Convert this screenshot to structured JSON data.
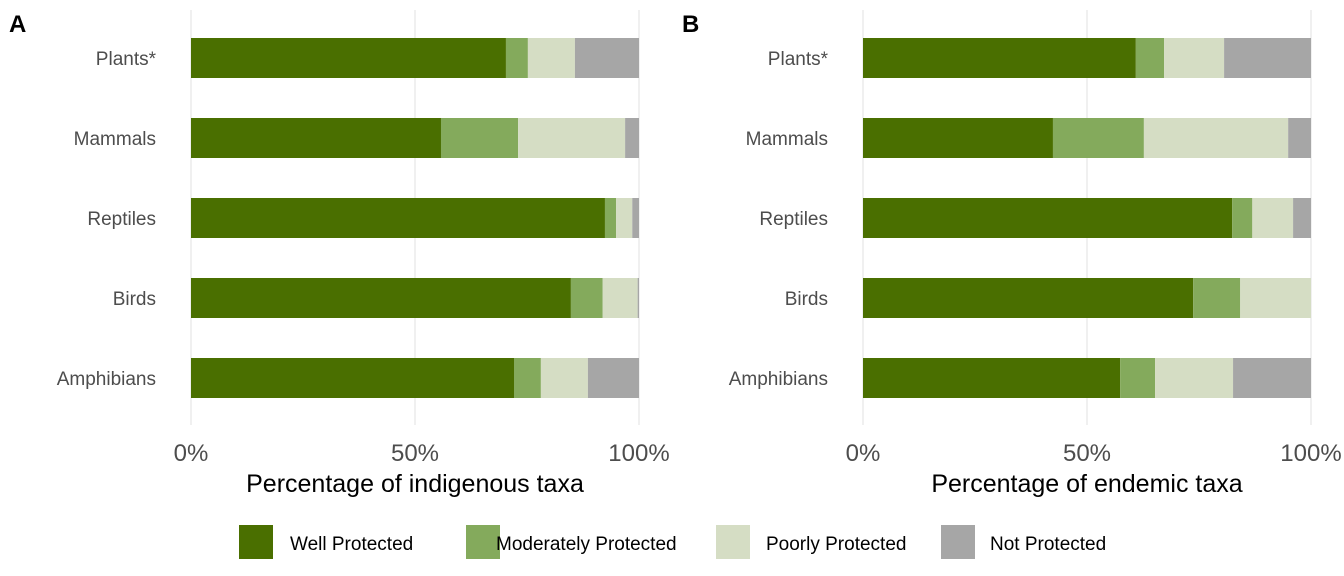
{
  "chart_data": {
    "type": "bar",
    "orientation": "horizontal",
    "stacked": true,
    "legend": {
      "position": "bottom",
      "entries": [
        {
          "name": "Well Protected",
          "color": "#4a6f00"
        },
        {
          "name": "Moderately Protected",
          "color": "#84aa5c"
        },
        {
          "name": "Poorly Protected",
          "color": "#d5ddc4"
        },
        {
          "name": "Not Protected",
          "color": "#a6a6a6"
        }
      ]
    },
    "panels": [
      {
        "tag": "A",
        "xlabel": "Percentage of indigenous taxa",
        "xlim": [
          0,
          100
        ],
        "xticks": [
          "0%",
          "50%",
          "100%"
        ],
        "xtick_values": [
          0,
          50,
          100
        ],
        "grid": true,
        "categories": [
          "Plants*",
          "Mammals",
          "Reptiles",
          "Birds",
          "Amphibians"
        ],
        "series": [
          {
            "name": "Well Protected",
            "values": [
              70.3,
              55.8,
              92.4,
              84.8,
              72.1
            ]
          },
          {
            "name": "Moderately Protected",
            "values": [
              4.9,
              17.2,
              2.5,
              7.1,
              6.0
            ]
          },
          {
            "name": "Poorly Protected",
            "values": [
              10.5,
              23.9,
              3.6,
              7.8,
              10.5
            ]
          },
          {
            "name": "Not Protected",
            "values": [
              14.3,
              3.1,
              1.5,
              0.3,
              11.4
            ]
          }
        ]
      },
      {
        "tag": "B",
        "xlabel": "Percentage of endemic taxa",
        "xlim": [
          0,
          100
        ],
        "xticks": [
          "0%",
          "50%",
          "100%"
        ],
        "xtick_values": [
          0,
          50,
          100
        ],
        "grid": true,
        "categories": [
          "Plants*",
          "Mammals",
          "Reptiles",
          "Birds",
          "Amphibians"
        ],
        "series": [
          {
            "name": "Well Protected",
            "values": [
              60.9,
              42.4,
              82.4,
              73.7,
              57.4
            ]
          },
          {
            "name": "Moderately Protected",
            "values": [
              6.3,
              20.3,
              4.5,
              10.5,
              7.8
            ]
          },
          {
            "name": "Poorly Protected",
            "values": [
              13.4,
              32.2,
              9.1,
              15.8,
              17.4
            ]
          },
          {
            "name": "Not Protected",
            "values": [
              19.4,
              5.1,
              4.0,
              0.0,
              17.4
            ]
          }
        ]
      }
    ]
  }
}
